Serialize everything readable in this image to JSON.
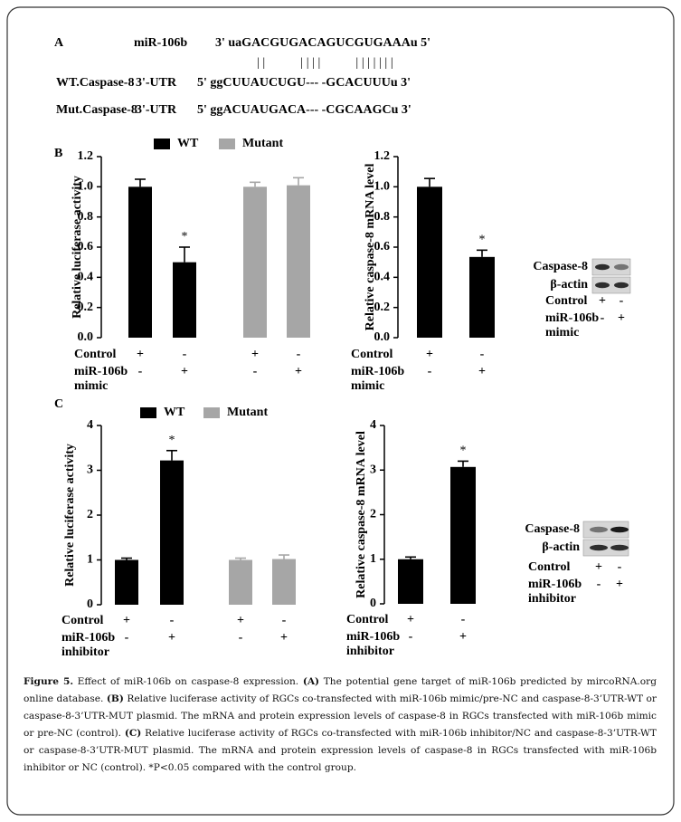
{
  "panel_labels": [
    "A",
    "B",
    "C"
  ],
  "panel_a": {
    "mirna": {
      "name": "miR-106b",
      "sequence": "3' uaGACGUGACAGUCGUGAAAu 5'"
    },
    "pairing": "||     ||||     |||||||",
    "targets": [
      {
        "name": "WT.Caspase-8",
        "region": "3'-UTR",
        "sequence": "5' ggCUUAUCUGU--- -GCACUUUu 3'"
      },
      {
        "name": "Mut.Caspase-8",
        "region": "3'-UTR",
        "sequence": "5' ggACUAUGACA--- -CGCAAGCu 3'"
      }
    ]
  },
  "chart_data": [
    {
      "type": "bar",
      "y_label": "Relative luciferase activity",
      "ylim": [
        0,
        1.2
      ],
      "yticks": [
        {
          "value": 0,
          "label": "0.0"
        },
        0.2,
        0.4,
        0.6,
        0.8,
        {
          "value": 1,
          "label": "1.0"
        },
        1.2
      ],
      "series": [
        {
          "name": "WT",
          "color": "#000000",
          "values": [
            1.0,
            0.5,
            null,
            null
          ],
          "errors": [
            0.05,
            0.1,
            null,
            null
          ],
          "significance": [
            null,
            "*",
            null,
            null
          ]
        },
        {
          "name": "Mutant",
          "color": "#a6a6a6",
          "values": [
            null,
            null,
            1.0,
            1.01
          ],
          "errors": [
            null,
            null,
            0.03,
            0.05
          ]
        }
      ],
      "conditions": [
        {
          "label": [
            "Control"
          ],
          "signs": [
            "+",
            "-",
            "+",
            "-"
          ]
        },
        {
          "label": [
            "miR-106b",
            "mimic"
          ],
          "signs": [
            "-",
            "+",
            "-",
            "+"
          ]
        }
      ]
    },
    {
      "type": "bar",
      "y_label": "Relative caspase-8 mRNA level",
      "ylim": [
        0,
        1.2
      ],
      "yticks": [
        {
          "value": 0,
          "label": "0.0"
        },
        0.2,
        0.4,
        0.6,
        0.8,
        {
          "value": 1,
          "label": "1.0"
        },
        1.2
      ],
      "series": [
        {
          "color": "#000000",
          "values": [
            1.0,
            0.535
          ],
          "errors": [
            0.055,
            0.045
          ],
          "significance": [
            null,
            "*"
          ]
        }
      ],
      "conditions": [
        {
          "label": [
            "Control"
          ],
          "signs": [
            "+",
            "-"
          ]
        },
        {
          "label": [
            "miR-106b",
            "mimic"
          ],
          "signs": [
            "-",
            "+"
          ]
        }
      ]
    },
    {
      "type": "bar",
      "y_label": "Relative luciferase activity",
      "ylim": [
        0,
        4
      ],
      "yticks": [
        0,
        1,
        2,
        3,
        4
      ],
      "series": [
        {
          "name": "WT",
          "color": "#000000",
          "values": [
            1.0,
            3.22,
            null,
            null
          ],
          "errors": [
            0.04,
            0.22,
            null,
            null
          ],
          "significance": [
            null,
            "*",
            null,
            null
          ]
        },
        {
          "name": "Mutant",
          "color": "#a6a6a6",
          "values": [
            null,
            null,
            1.0,
            1.02
          ],
          "errors": [
            null,
            null,
            0.04,
            0.09
          ]
        }
      ],
      "conditions": [
        {
          "label": [
            "Control"
          ],
          "signs": [
            "+",
            "-",
            "+",
            "-"
          ]
        },
        {
          "label": [
            "miR-106b",
            "inhibitor"
          ],
          "signs": [
            "-",
            "+",
            "-",
            "+"
          ]
        }
      ]
    },
    {
      "type": "bar",
      "y_label": "Relative caspase-8 mRNA level",
      "ylim": [
        0,
        4
      ],
      "yticks": [
        0,
        1,
        2,
        3,
        4
      ],
      "series": [
        {
          "color": "#000000",
          "values": [
            1.0,
            3.07
          ],
          "errors": [
            0.05,
            0.13
          ],
          "significance": [
            null,
            "*"
          ]
        }
      ],
      "conditions": [
        {
          "label": [
            "Control"
          ],
          "signs": [
            "+",
            "-"
          ]
        },
        {
          "label": [
            "miR-106b",
            "inhibitor"
          ],
          "signs": [
            "-",
            "+"
          ]
        }
      ]
    }
  ],
  "blots": [
    {
      "rows": [
        "Caspase-8",
        "β-actin"
      ],
      "conditions": [
        {
          "label": [
            "Control"
          ],
          "signs": [
            "+",
            "-"
          ]
        },
        {
          "label": [
            "miR-106b",
            "mimic"
          ],
          "signs": [
            "-",
            "+"
          ]
        }
      ]
    },
    {
      "rows": [
        "Caspase-8",
        "β-actin"
      ],
      "conditions": [
        {
          "label": [
            "Control"
          ],
          "signs": [
            "+",
            "-"
          ]
        },
        {
          "label": [
            "miR-106b",
            "inhibitor"
          ],
          "signs": [
            "-",
            "+"
          ]
        }
      ]
    }
  ],
  "caption": [
    {
      "text": "Figure 5.",
      "style": "bold"
    },
    {
      "text": " Effect of miR-106b on caspase-8 expression. "
    },
    {
      "text": "(A)",
      "style": "bold"
    },
    {
      "text": " The potential gene target of miR-106b predicted by mircoRNA.org online database. "
    },
    {
      "text": "(B)",
      "style": "bold"
    },
    {
      "text": " Relative luciferase activity of RGCs co-transfected with miR-106b mimic/pre-NC and caspase-8-3’UTR-WT or caspase-8-3’UTR-MUT plasmid. The mRNA and protein expression levels of caspase-8 in RGCs transfected with miR-106b mimic or pre-NC (control). "
    },
    {
      "text": "(C)",
      "style": "bold"
    },
    {
      "text": " Relative luciferase activity of RGCs co-transfected with miR-106b inhibitor/NC and caspase-8-3’UTR-WT or caspase-8-3’UTR-MUT plasmid. The mRNA and protein expression levels of caspase-8 in RGCs transfected with miR-106b inhibitor or NC (control). *P<0.05 compared with the control group."
    }
  ]
}
